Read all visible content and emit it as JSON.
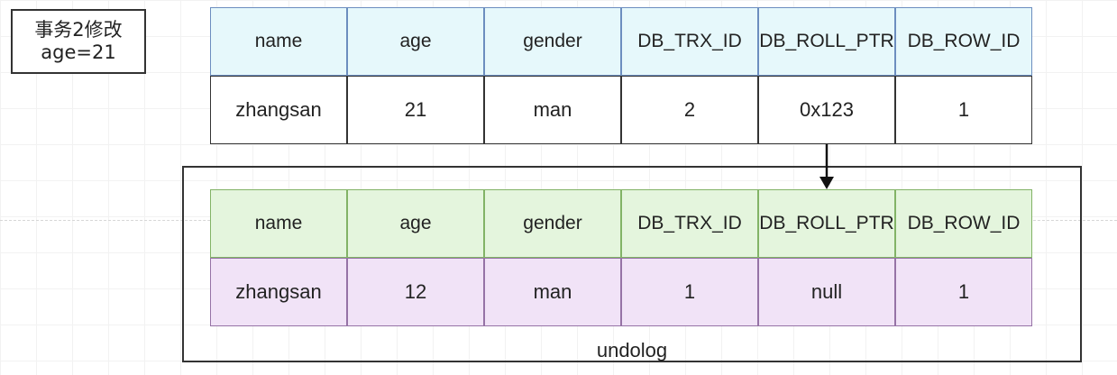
{
  "note": {
    "line1": "事务2修改",
    "line2": "age=21"
  },
  "current_record": {
    "headers": [
      "name",
      "age",
      "gender",
      "DB_TRX_ID",
      "DB_ROLL_PTR",
      "DB_ROW_ID"
    ],
    "values": [
      "zhangsan",
      "21",
      "man",
      "2",
      "0x123",
      "1"
    ]
  },
  "undo_log": {
    "label": "undolog",
    "headers": [
      "name",
      "age",
      "gender",
      "DB_TRX_ID",
      "DB_ROLL_PTR",
      "DB_ROW_ID"
    ],
    "values": [
      "zhangsan",
      "12",
      "man",
      "1",
      "null",
      "1"
    ]
  },
  "colors": {
    "current_header_fill": "#e6f8fb",
    "current_header_stroke": "#6c8ebf",
    "undo_header_fill": "#e4f5dd",
    "undo_header_stroke": "#82b366",
    "undo_value_fill": "#f1e3f7",
    "undo_value_stroke": "#9673a6"
  }
}
